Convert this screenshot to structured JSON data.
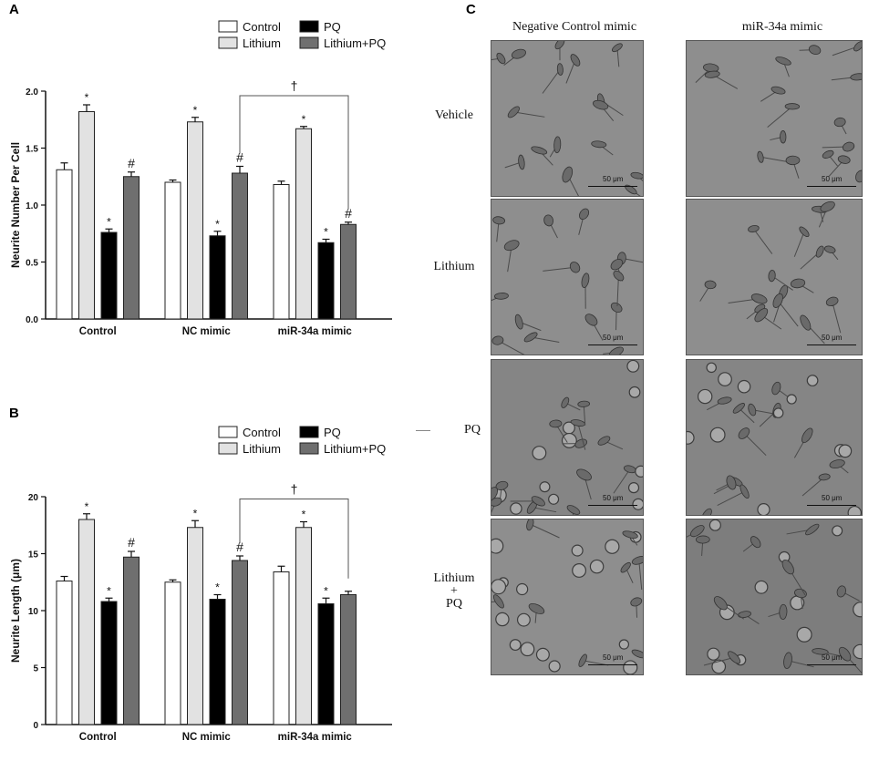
{
  "panels": {
    "a": "A",
    "b": "B",
    "c": "C"
  },
  "legend": [
    {
      "label": "Control",
      "color": "#ffffff"
    },
    {
      "label": "Lithium",
      "color": "#e2e2e2"
    },
    {
      "label": "PQ",
      "color": "#000000"
    },
    {
      "label": "Lithium+PQ",
      "color": "#6f6f6f"
    }
  ],
  "chart_data": [
    {
      "type": "bar",
      "panel": "A",
      "ylabel": "Neurite Number Per Cell",
      "xlabel": "",
      "ylim": [
        0,
        2.0
      ],
      "yticks": [
        "0.0",
        "0.5",
        "1.0",
        "1.5",
        "2.0"
      ],
      "categories": [
        "Control",
        "NC mimic",
        "miR-34a mimic"
      ],
      "series": [
        {
          "name": "Control",
          "values": [
            1.31,
            1.2,
            1.18
          ],
          "err": [
            0.06,
            0.02,
            0.03
          ],
          "marks": [
            "",
            "",
            ""
          ]
        },
        {
          "name": "Lithium",
          "values": [
            1.82,
            1.73,
            1.67
          ],
          "err": [
            0.06,
            0.04,
            0.02
          ],
          "marks": [
            "*",
            "*",
            "*"
          ]
        },
        {
          "name": "PQ",
          "values": [
            0.76,
            0.73,
            0.67
          ],
          "err": [
            0.03,
            0.04,
            0.03
          ],
          "marks": [
            "*",
            "*",
            "*"
          ]
        },
        {
          "name": "Lithium+PQ",
          "values": [
            1.25,
            1.28,
            0.83
          ],
          "err": [
            0.04,
            0.06,
            0.02
          ],
          "marks": [
            "#",
            "#",
            "#"
          ]
        }
      ],
      "bracket": {
        "symbol": "†",
        "from_category": 1,
        "to_category": 2,
        "value": 1.96
      }
    },
    {
      "type": "bar",
      "panel": "B",
      "ylabel": "Neurite Length (μm)",
      "xlabel": "",
      "ylim": [
        0,
        20
      ],
      "yticks": [
        "0",
        "5",
        "10",
        "15",
        "20"
      ],
      "categories": [
        "Control",
        "NC mimic",
        "miR-34a mimic"
      ],
      "series": [
        {
          "name": "Control",
          "values": [
            12.6,
            12.5,
            13.4
          ],
          "err": [
            0.4,
            0.2,
            0.5
          ],
          "marks": [
            "",
            "",
            ""
          ]
        },
        {
          "name": "Lithium",
          "values": [
            18.0,
            17.3,
            17.3
          ],
          "err": [
            0.5,
            0.6,
            0.5
          ],
          "marks": [
            "*",
            "*",
            "*"
          ]
        },
        {
          "name": "PQ",
          "values": [
            10.8,
            11.0,
            10.6
          ],
          "err": [
            0.3,
            0.4,
            0.5
          ],
          "marks": [
            "*",
            "*",
            "*"
          ]
        },
        {
          "name": "Lithium+PQ",
          "values": [
            14.7,
            14.4,
            11.4
          ],
          "err": [
            0.5,
            0.4,
            0.3
          ],
          "marks": [
            "#",
            "#",
            ""
          ]
        }
      ],
      "bracket": {
        "symbol": "†",
        "from_category": 1,
        "to_category": 2,
        "value": 19.8
      }
    }
  ],
  "micrographs": {
    "columns": [
      "Negative Control mimic",
      "miR-34a mimic"
    ],
    "rows": [
      {
        "label": "Vehicle",
        "lines": [
          "Vehicle"
        ]
      },
      {
        "label": "Lithium",
        "lines": [
          "Lithium"
        ]
      },
      {
        "label": "PQ",
        "lines": [
          "PQ"
        ]
      },
      {
        "label": "Lithium + PQ",
        "lines": [
          "Lithium",
          "+",
          "PQ"
        ]
      }
    ],
    "scale_label": "50 μm"
  }
}
